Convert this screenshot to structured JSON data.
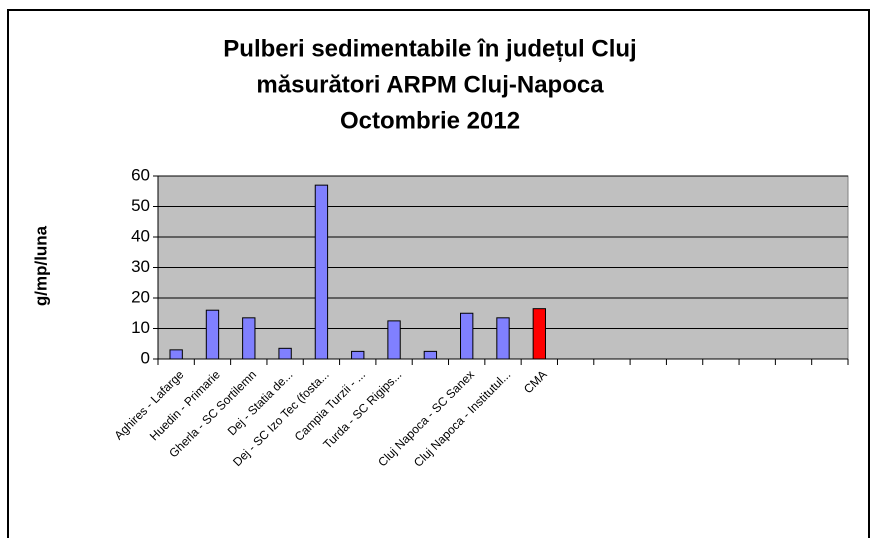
{
  "chart_data": {
    "type": "bar",
    "title": [
      "Pulberi sedimentabile în județul Cluj",
      "măsurători ARPM Cluj-Napoca",
      "Octombrie 2012"
    ],
    "y_label": "g/mp/luna",
    "categories": [
      "Aghires - Lafarge",
      "Huedin - Primarie",
      "Gherla - SC Sortilemn",
      "Dej - Statia de...",
      "Dej - SC Izo Tec (fosta...",
      "Campia Turzii - ...",
      "Turda - SC Rigips...",
      null,
      "Cluj Napoca - SC Sanex",
      "Cluj Napoca - Institutul...",
      "CMA",
      null,
      null,
      null,
      null,
      null,
      null,
      null,
      null
    ],
    "values": [
      3,
      16,
      13.5,
      3.5,
      57,
      2.5,
      12.5,
      2.5,
      15,
      13.5,
      16.5,
      null,
      null,
      null,
      null,
      null,
      null,
      null,
      null
    ],
    "colors": [
      "#8080ff",
      "#8080ff",
      "#8080ff",
      "#8080ff",
      "#8080ff",
      "#8080ff",
      "#8080ff",
      "#8080ff",
      "#8080ff",
      "#8080ff",
      "#ff0000",
      null,
      null,
      null,
      null,
      null,
      null,
      null,
      null
    ],
    "ylim": [
      0,
      60
    ],
    "yticks": [
      0,
      10,
      20,
      30,
      40,
      50,
      60
    ],
    "grid": true,
    "plot_background": "#c0c0c0"
  }
}
